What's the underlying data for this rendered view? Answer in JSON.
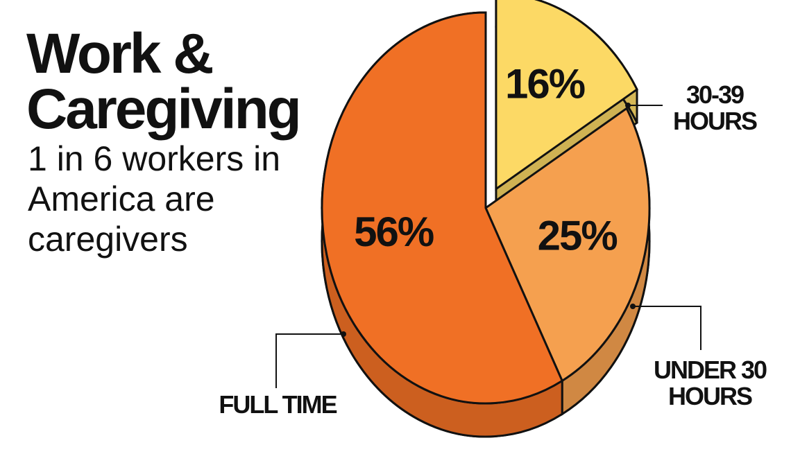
{
  "chart_data": {
    "type": "pie",
    "title": "Work & Caregiving",
    "subtitle": "1 in 6 workers in America are caregivers",
    "categories": [
      "30-39 HOURS",
      "UNDER 30 HOURS",
      "FULL TIME"
    ],
    "values": [
      16,
      25,
      56
    ],
    "value_labels": [
      "16%",
      "25%",
      "56%"
    ],
    "colors": [
      "#fcd965",
      "#f5a04f",
      "#f07025"
    ]
  }
}
